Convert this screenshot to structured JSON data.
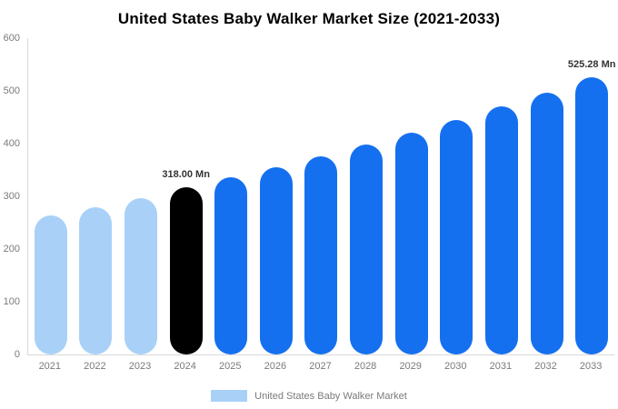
{
  "title": "United States Baby Walker Market Size (2021-2033)",
  "chart_data": {
    "type": "bar",
    "title": "United States Baby Walker Market Size (2021-2033)",
    "categories": [
      "2021",
      "2022",
      "2023",
      "2024",
      "2025",
      "2026",
      "2027",
      "2028",
      "2029",
      "2030",
      "2031",
      "2032",
      "2033"
    ],
    "values": [
      263,
      279,
      297,
      318,
      336,
      356,
      376,
      398,
      420,
      445,
      470,
      497,
      525.28
    ],
    "bar_color_keys": [
      "light_blue",
      "light_blue",
      "light_blue",
      "black",
      "blue",
      "blue",
      "blue",
      "blue",
      "blue",
      "blue",
      "blue",
      "blue",
      "blue"
    ],
    "colors": {
      "light_blue": "#A9D1F7",
      "black": "#000000",
      "blue": "#1570EF"
    },
    "annotations": [
      {
        "category": "2024",
        "index": 3,
        "text": "318.00 Mn"
      },
      {
        "category": "2033",
        "index": 12,
        "text": "525.28 Mn"
      }
    ],
    "ylim": [
      0,
      600
    ],
    "yticks": [
      "0",
      "100",
      "200",
      "300",
      "400",
      "500",
      "600"
    ],
    "grid": false,
    "unit": "Mn",
    "legend": {
      "position": "bottom",
      "items": [
        {
          "label": "United States Baby Walker Market",
          "color_key": "light_blue"
        }
      ]
    }
  }
}
